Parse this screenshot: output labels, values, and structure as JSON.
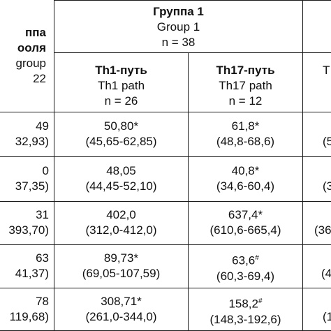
{
  "header": {
    "control": {
      "line1": "ппа",
      "line2": "ооля",
      "line3": "group",
      "line4": "22"
    },
    "group1": {
      "title_ru": "Группа 1",
      "title_en": "Group 1",
      "n": "n = 38"
    },
    "th1": {
      "title_ru": "Th1-путь",
      "title_en": "Th1 path",
      "n": "n = 26"
    },
    "th17": {
      "title_ru": "Th17-путь",
      "title_en": "Th17 path",
      "n": "n = 12"
    },
    "right_fragment": "T"
  },
  "rows": [
    {
      "left": [
        "49",
        "32,93)"
      ],
      "th1": [
        "50,80*",
        "(45,65-62,85)"
      ],
      "th17": [
        "61,8*",
        "(48,8-68,6)"
      ],
      "right": [
        "(5",
        ""
      ]
    },
    {
      "left": [
        "0",
        "37,35)"
      ],
      "th1": [
        "48,05",
        "(44,45-52,10)"
      ],
      "th17": [
        "40,8*",
        "(34,6-60,4)"
      ],
      "right": [
        "",
        "(3"
      ]
    },
    {
      "left": [
        "31",
        "393,70)"
      ],
      "th1": [
        "402,0",
        "(312,0-412,0)"
      ],
      "th17": [
        "637,4*",
        "(610,6-665,4)"
      ],
      "right": [
        "",
        "(36"
      ]
    },
    {
      "left": [
        "63",
        "41,37)"
      ],
      "th1": [
        "89,73*",
        "(69,05-107,59)"
      ],
      "th17": [
        "63,6#",
        "(60,3-69,4)"
      ],
      "right": [
        "",
        "(4"
      ]
    },
    {
      "left": [
        "78",
        "119,68)"
      ],
      "th1": [
        "308,71*",
        "(261,0-344,0)"
      ],
      "th17": [
        "158,2#",
        "(148,3-192,6)"
      ],
      "right": [
        "",
        "(1"
      ]
    }
  ]
}
